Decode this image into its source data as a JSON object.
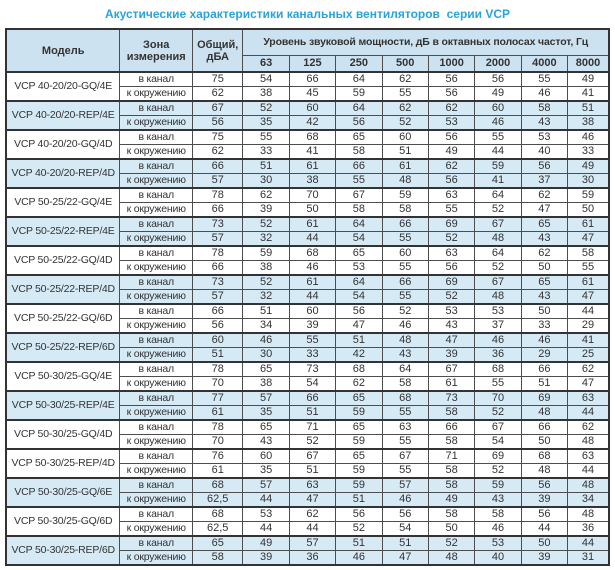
{
  "title": "Акустические характеристики канальных вентиляторов  серии VCP",
  "header": {
    "model": "Модель",
    "zone_line1": "Зона",
    "zone_line2": "измерения",
    "total_line1": "Общий,",
    "total_line2": "дБА",
    "spl_group": "Уровень звуковой мощности, дБ в октавных полосах частот, Гц",
    "frequencies": [
      "63",
      "125",
      "250",
      "500",
      "1000",
      "2000",
      "4000",
      "8000"
    ]
  },
  "zone_labels": {
    "in_duct": "в канал",
    "to_surround": "к окружению"
  },
  "colors": {
    "title": "#29a3dd",
    "header_bg": "#cde2f0",
    "shaded_row_bg": "#d6eaf6",
    "border": "#4d4d4d",
    "text": "#333333"
  },
  "rows": [
    {
      "model": "VCP 40-20/20-GQ/4E",
      "shaded": false,
      "in_duct": [
        "75",
        "54",
        "66",
        "64",
        "62",
        "56",
        "56",
        "55",
        "49"
      ],
      "to_surround": [
        "62",
        "38",
        "45",
        "59",
        "55",
        "56",
        "49",
        "46",
        "41"
      ]
    },
    {
      "model": "VCP 40-20/20-REP/4E",
      "shaded": true,
      "in_duct": [
        "67",
        "52",
        "60",
        "64",
        "62",
        "62",
        "60",
        "58",
        "51"
      ],
      "to_surround": [
        "56",
        "35",
        "42",
        "56",
        "52",
        "53",
        "46",
        "43",
        "38"
      ]
    },
    {
      "model": "VCP 40-20/20-GQ/4D",
      "shaded": false,
      "in_duct": [
        "75",
        "55",
        "68",
        "65",
        "60",
        "56",
        "55",
        "53",
        "46"
      ],
      "to_surround": [
        "62",
        "33",
        "41",
        "58",
        "51",
        "49",
        "44",
        "40",
        "33"
      ]
    },
    {
      "model": "VCP 40-20/20-REP/4D",
      "shaded": true,
      "in_duct": [
        "66",
        "51",
        "61",
        "66",
        "61",
        "62",
        "59",
        "56",
        "49"
      ],
      "to_surround": [
        "57",
        "30",
        "38",
        "55",
        "48",
        "56",
        "41",
        "37",
        "30"
      ]
    },
    {
      "model": "VCP 50-25/22-GQ/4E",
      "shaded": false,
      "in_duct": [
        "78",
        "62",
        "70",
        "67",
        "59",
        "63",
        "64",
        "62",
        "59"
      ],
      "to_surround": [
        "66",
        "39",
        "50",
        "58",
        "58",
        "55",
        "52",
        "47",
        "50"
      ]
    },
    {
      "model": "VCP 50-25/22-REP/4E",
      "shaded": true,
      "in_duct": [
        "73",
        "52",
        "61",
        "64",
        "66",
        "69",
        "67",
        "65",
        "61"
      ],
      "to_surround": [
        "57",
        "32",
        "44",
        "54",
        "55",
        "52",
        "48",
        "43",
        "47"
      ]
    },
    {
      "model": "VCP 50-25/22-GQ/4D",
      "shaded": false,
      "in_duct": [
        "78",
        "59",
        "68",
        "65",
        "60",
        "63",
        "64",
        "62",
        "58"
      ],
      "to_surround": [
        "66",
        "38",
        "46",
        "53",
        "55",
        "56",
        "52",
        "50",
        "55"
      ]
    },
    {
      "model": "VCP 50-25/22-REP/4D",
      "shaded": true,
      "in_duct": [
        "73",
        "52",
        "61",
        "64",
        "66",
        "69",
        "67",
        "65",
        "61"
      ],
      "to_surround": [
        "57",
        "32",
        "44",
        "54",
        "55",
        "52",
        "48",
        "43",
        "47"
      ]
    },
    {
      "model": "VCP 50-25/22-GQ/6D",
      "shaded": false,
      "in_duct": [
        "66",
        "51",
        "60",
        "56",
        "52",
        "53",
        "53",
        "50",
        "44"
      ],
      "to_surround": [
        "56",
        "34",
        "39",
        "47",
        "46",
        "43",
        "37",
        "33",
        "29"
      ]
    },
    {
      "model": "VCP 50-25/22-REP/6D",
      "shaded": true,
      "in_duct": [
        "60",
        "46",
        "55",
        "51",
        "48",
        "47",
        "46",
        "46",
        "41"
      ],
      "to_surround": [
        "51",
        "30",
        "33",
        "42",
        "43",
        "39",
        "36",
        "29",
        "25"
      ]
    },
    {
      "model": "VCP 50-30/25-GQ/4E",
      "shaded": false,
      "in_duct": [
        "78",
        "65",
        "73",
        "68",
        "64",
        "67",
        "68",
        "66",
        "62"
      ],
      "to_surround": [
        "70",
        "38",
        "54",
        "62",
        "58",
        "61",
        "55",
        "51",
        "47"
      ]
    },
    {
      "model": "VCP 50-30/25-REP/4E",
      "shaded": true,
      "in_duct": [
        "77",
        "57",
        "66",
        "65",
        "68",
        "73",
        "70",
        "69",
        "63"
      ],
      "to_surround": [
        "61",
        "35",
        "51",
        "59",
        "55",
        "58",
        "52",
        "48",
        "44"
      ]
    },
    {
      "model": "VCP 50-30/25-GQ/4D",
      "shaded": false,
      "in_duct": [
        "78",
        "65",
        "71",
        "65",
        "63",
        "66",
        "67",
        "66",
        "62"
      ],
      "to_surround": [
        "70",
        "43",
        "52",
        "59",
        "55",
        "58",
        "54",
        "50",
        "48"
      ]
    },
    {
      "model": "VCP 50-30/25-REP/4D",
      "shaded": false,
      "in_duct": [
        "76",
        "60",
        "67",
        "65",
        "67",
        "71",
        "69",
        "68",
        "63"
      ],
      "to_surround": [
        "61",
        "35",
        "51",
        "59",
        "55",
        "58",
        "52",
        "48",
        "44"
      ]
    },
    {
      "model": "VCP 50-30/25-GQ/6E",
      "shaded": true,
      "in_duct": [
        "68",
        "57",
        "63",
        "59",
        "57",
        "58",
        "59",
        "56",
        "48"
      ],
      "to_surround": [
        "62,5",
        "44",
        "47",
        "51",
        "46",
        "49",
        "43",
        "39",
        "34"
      ]
    },
    {
      "model": "VCP 50-30/25-GQ/6D",
      "shaded": false,
      "in_duct": [
        "68",
        "53",
        "62",
        "56",
        "56",
        "58",
        "58",
        "56",
        "48"
      ],
      "to_surround": [
        "62,5",
        "44",
        "44",
        "52",
        "54",
        "50",
        "46",
        "44",
        "36"
      ]
    },
    {
      "model": "VCP 50-30/25-REP/6D",
      "shaded": true,
      "in_duct": [
        "65",
        "49",
        "57",
        "51",
        "51",
        "52",
        "53",
        "50",
        "44"
      ],
      "to_surround": [
        "58",
        "39",
        "36",
        "46",
        "47",
        "48",
        "40",
        "39",
        "31"
      ]
    }
  ]
}
